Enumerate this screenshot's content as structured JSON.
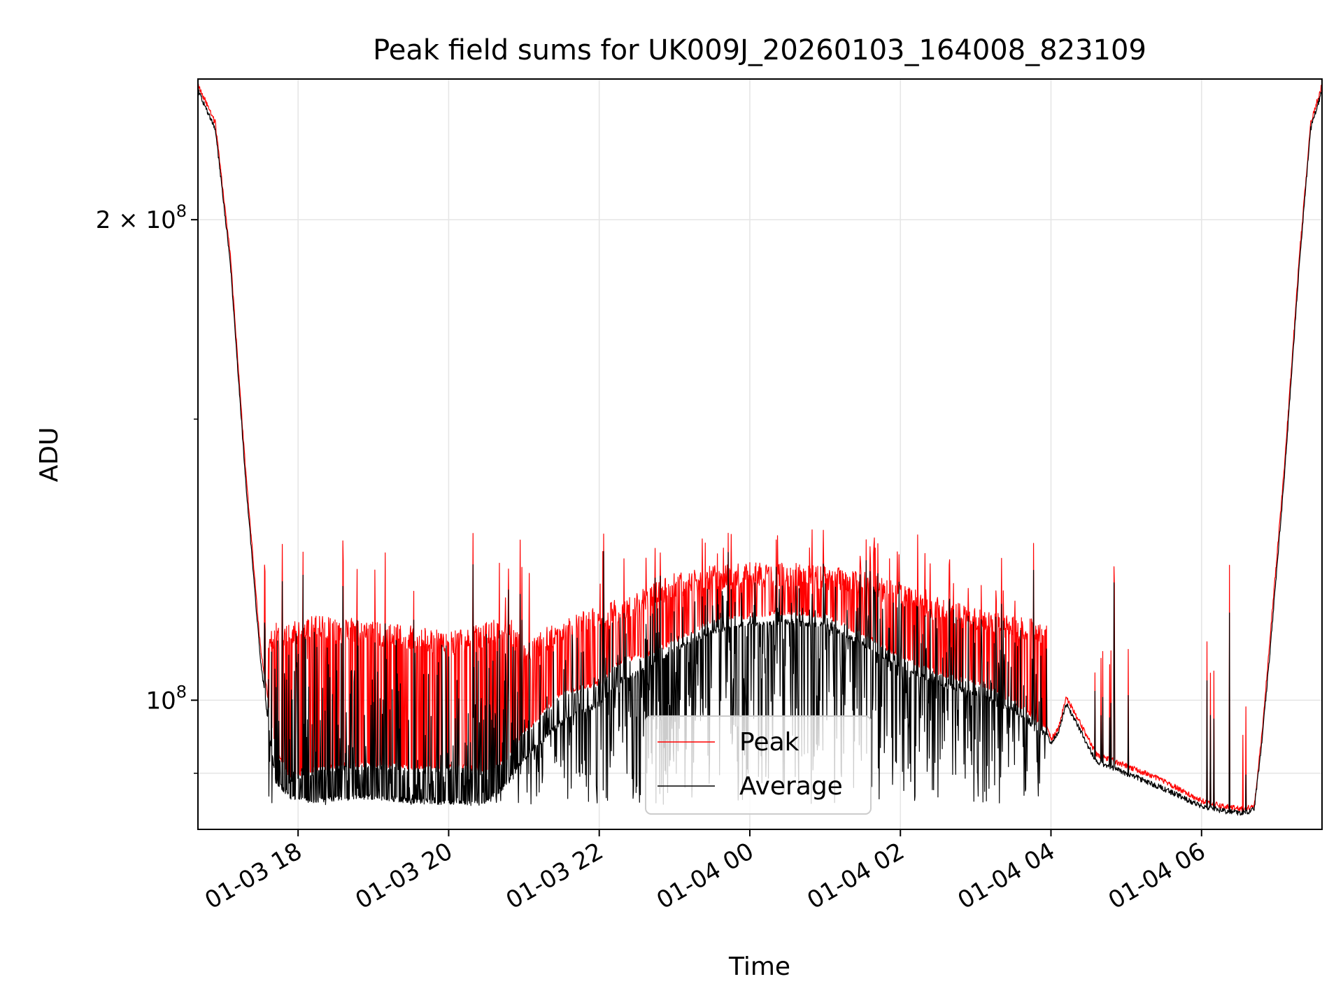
{
  "chart_data": {
    "type": "line",
    "title": "Peak field sums for UK009J_20260103_164008_823109",
    "xlabel": "Time",
    "ylabel": "ADU",
    "yscale": "log",
    "ylim": [
      83000000,
      245000000
    ],
    "xlim": [
      16.67,
      31.6
    ],
    "x_ticks": [
      {
        "value": 18,
        "label": "01-03 18"
      },
      {
        "value": 20,
        "label": "01-03 20"
      },
      {
        "value": 22,
        "label": "01-03 22"
      },
      {
        "value": 24,
        "label": "01-04 00"
      },
      {
        "value": 26,
        "label": "01-04 02"
      },
      {
        "value": 28,
        "label": "01-04 04"
      },
      {
        "value": 30,
        "label": "01-04 06"
      }
    ],
    "y_major_ticks": [
      {
        "value": 100000000,
        "mantissa": "",
        "exponent": "8"
      },
      {
        "value": 200000000,
        "mantissa": "2",
        "exponent": "8"
      }
    ],
    "y_minor_grid": [
      90000000
    ],
    "grid": true,
    "legend": {
      "location": "lower center",
      "entries": [
        "Peak",
        "Average"
      ]
    },
    "series": [
      {
        "name": "Peak",
        "color": "#ff0000",
        "baseline_x": [
          16.67,
          16.9,
          17.1,
          17.3,
          17.5,
          17.7,
          17.9,
          18.2,
          18.5,
          19.0,
          19.5,
          20.0,
          20.5,
          20.8,
          21.0,
          21.5,
          22.0,
          22.3,
          22.6,
          23.0,
          23.5,
          24.0,
          24.5,
          25.0,
          25.5,
          26.0,
          26.5,
          27.0,
          27.5,
          27.95,
          28.0,
          28.1,
          28.2,
          28.4,
          28.6,
          29.0,
          29.5,
          30.0,
          30.3,
          30.5,
          30.6,
          30.7,
          30.8,
          30.9,
          31.1,
          31.3,
          31.45,
          31.6
        ],
        "baseline_y": [
          243000000,
          230000000,
          190000000,
          140000000,
          108000000,
          93000000,
          89500000,
          90500000,
          91000000,
          91200000,
          90800000,
          91000000,
          90500000,
          92000000,
          95500000,
          101000000,
          102500000,
          106000000,
          106500000,
          109000000,
          112000000,
          113000000,
          113500000,
          113000000,
          110000000,
          106500000,
          104000000,
          102500000,
          100000000,
          96000000,
          94500000,
          96000000,
          100500000,
          96500000,
          92500000,
          91000000,
          89000000,
          86500000,
          85800000,
          85500000,
          85500000,
          86000000,
          95000000,
          108000000,
          140000000,
          190000000,
          230000000,
          243000000
        ],
        "envelope_x": [
          17.6,
          18.2,
          18.8,
          19.4,
          20.0,
          20.4,
          20.8,
          21.0,
          21.5,
          22.0,
          22.5,
          23.0,
          23.5,
          24.0,
          24.5,
          25.0,
          25.5,
          26.0,
          26.5,
          27.0,
          27.5,
          27.95
        ],
        "envelope_y": [
          111000000,
          113000000,
          112500000,
          111500000,
          110500000,
          111500000,
          113000000,
          109000000,
          112500000,
          114500000,
          117000000,
          120000000,
          121500000,
          122000000,
          122000000,
          121500000,
          120500000,
          118500000,
          116000000,
          114500000,
          113000000,
          112000000
        ],
        "spike_min": 120000000,
        "spike_max": 128000000,
        "spike_count": 170
      },
      {
        "name": "Average",
        "color": "#000000",
        "baseline_x": [
          16.67,
          16.9,
          17.1,
          17.3,
          17.5,
          17.7,
          17.9,
          18.2,
          18.5,
          19.0,
          19.5,
          20.0,
          20.5,
          20.8,
          21.0,
          21.5,
          22.0,
          22.3,
          22.6,
          23.0,
          23.5,
          24.0,
          24.5,
          25.0,
          25.5,
          26.0,
          26.5,
          27.0,
          27.5,
          27.95,
          28.0,
          28.1,
          28.2,
          28.4,
          28.6,
          29.0,
          29.5,
          30.0,
          30.3,
          30.5,
          30.6,
          30.7,
          30.8,
          30.9,
          31.1,
          31.3,
          31.45,
          31.6
        ],
        "baseline_y": [
          241000000,
          228000000,
          188000000,
          138000000,
          106000000,
          89000000,
          87000000,
          86500000,
          86800000,
          87000000,
          86500000,
          86300000,
          86200000,
          89000000,
          92000000,
          97000000,
          99500000,
          103000000,
          104500000,
          107500000,
          110500000,
          111500000,
          112000000,
          111500000,
          108500000,
          105000000,
          102500000,
          101000000,
          98500000,
          95000000,
          94000000,
          95500000,
          99500000,
          95500000,
          91500000,
          90000000,
          88000000,
          85800000,
          85200000,
          85000000,
          85000000,
          85500000,
          94000000,
          106000000,
          138000000,
          188000000,
          228000000,
          241000000
        ],
        "dip_min": 86000000,
        "dip_count": 420
      }
    ]
  }
}
